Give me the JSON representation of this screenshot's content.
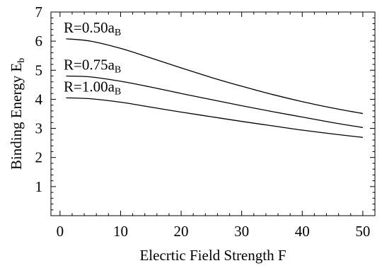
{
  "chart_data": {
    "type": "line",
    "title": "",
    "xlabel": "Elecrtic Field Strength F",
    "ylabel": {
      "main": "Binding Energy E",
      "subscript": "b"
    },
    "xlim": [
      -1.5,
      52
    ],
    "ylim": [
      0,
      7
    ],
    "xticks": [
      0,
      10,
      20,
      30,
      40,
      50
    ],
    "yticks": [
      1,
      2,
      3,
      4,
      5,
      6,
      7
    ],
    "grid": false,
    "series": [
      {
        "label": {
          "prefix": "R=0.50a",
          "subscript": "B"
        },
        "x": [
          1,
          5,
          10,
          15,
          20,
          25,
          30,
          35,
          40,
          45,
          50
        ],
        "y": [
          6.08,
          6.0,
          5.75,
          5.42,
          5.08,
          4.75,
          4.45,
          4.17,
          3.92,
          3.7,
          3.51
        ]
      },
      {
        "label": {
          "prefix": "R=0.75a",
          "subscript": "B"
        },
        "x": [
          1,
          5,
          10,
          15,
          20,
          25,
          30,
          35,
          40,
          45,
          50
        ],
        "y": [
          4.8,
          4.77,
          4.62,
          4.42,
          4.2,
          3.99,
          3.78,
          3.58,
          3.39,
          3.2,
          3.03
        ]
      },
      {
        "label": {
          "prefix": "R=1.00a",
          "subscript": "B"
        },
        "x": [
          1,
          5,
          10,
          15,
          20,
          25,
          30,
          35,
          40,
          45,
          50
        ],
        "y": [
          4.05,
          4.02,
          3.9,
          3.73,
          3.56,
          3.4,
          3.24,
          3.09,
          2.94,
          2.81,
          2.69
        ]
      }
    ]
  }
}
